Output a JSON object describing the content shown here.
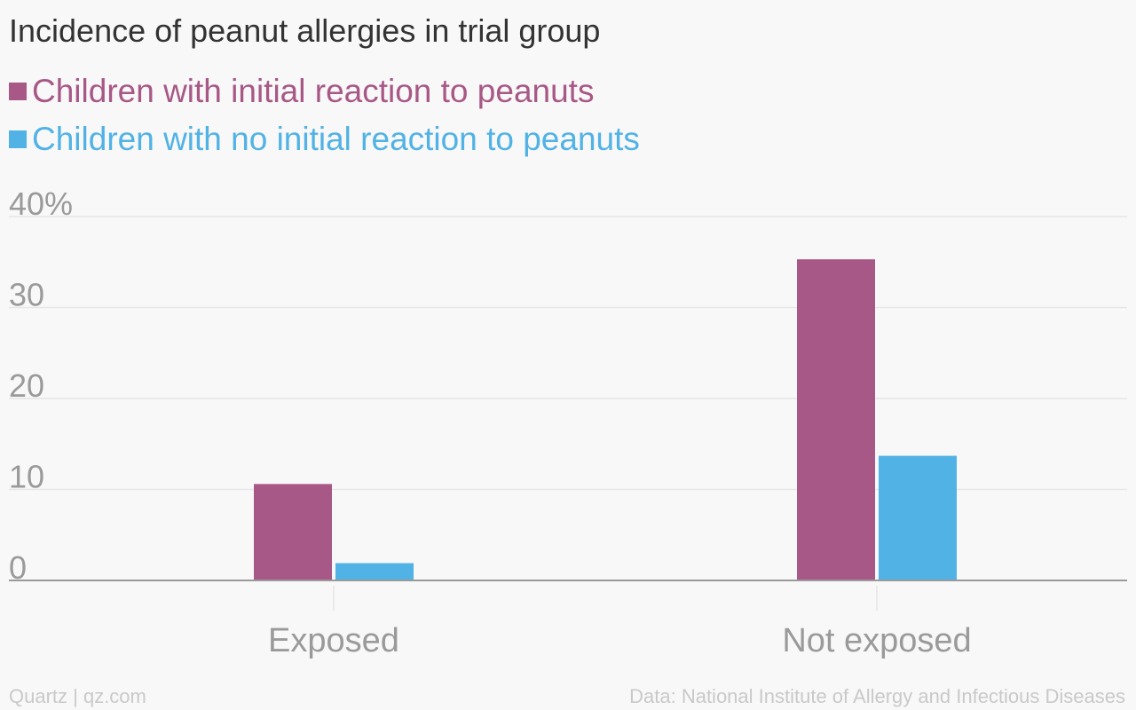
{
  "chart_data": {
    "type": "bar",
    "title": "Incidence of peanut allergies in trial group",
    "categories": [
      "Exposed",
      "Not exposed"
    ],
    "series": [
      {
        "name": "Children with initial reaction to peanuts",
        "color": "#a85886",
        "values": [
          10.6,
          35.3
        ]
      },
      {
        "name": "Children with no initial reaction to peanuts",
        "color": "#51b2e5",
        "values": [
          1.9,
          13.7
        ]
      }
    ],
    "ylim": [
      0,
      40
    ],
    "yticks": [
      {
        "value": 0,
        "label": "0"
      },
      {
        "value": 10,
        "label": "10"
      },
      {
        "value": 20,
        "label": "20"
      },
      {
        "value": 30,
        "label": "30"
      },
      {
        "value": 40,
        "label": "40%"
      }
    ],
    "grid": true,
    "legend_position": "top-left"
  },
  "footer": {
    "source_left": "Quartz | qz.com",
    "source_right": "Data: National Institute of Allergy and Infectious Diseases"
  },
  "colors": {
    "background": "#f8f8f8",
    "grid": "#e6e6e6",
    "axis": "#9a9a9a",
    "tick_text": "#9a9a9a",
    "title_text": "#333333",
    "footer_text": "#c9c9c9"
  }
}
